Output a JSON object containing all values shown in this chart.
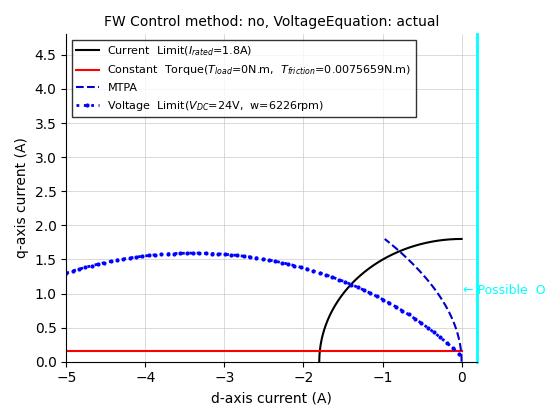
{
  "title": "FW Control method: no, VoltageEquation: actual",
  "xlabel": "d-axis current (A)",
  "ylabel": "q-axis current (A)",
  "xlim": [
    -5.0,
    0.2
  ],
  "ylim": [
    0,
    4.8
  ],
  "yticks": [
    0,
    0.5,
    1.0,
    1.5,
    2.0,
    2.5,
    3.0,
    3.5,
    4.0,
    4.5
  ],
  "xticks": [
    -5,
    -4,
    -3,
    -2,
    -1,
    0
  ],
  "I_rated": 1.8,
  "T_load": 0.0,
  "T_friction": 0.0075659,
  "V_DC": 24,
  "omega_rpm": 6226,
  "possible_op_x": 0.0,
  "possible_op_y": 1.0,
  "legend_labels": [
    "Current  Limit($I_{rated}$=1.8A)",
    "Constant  Torque($T_{load}$=0N.m,  $T_{friction}$=0.0075659N.m)",
    "MTPA",
    "Voltage  Limit($V_{DC}$=24V,  w=6226rpm)"
  ],
  "current_limit_color": "#000000",
  "const_torque_color": "#ff0000",
  "mtpa_color": "#0000cc",
  "voltage_limit_color": "#0000ff",
  "possible_op_color": "#00ffff",
  "background_color": "#ffffff",
  "grid_color": "#cccccc"
}
